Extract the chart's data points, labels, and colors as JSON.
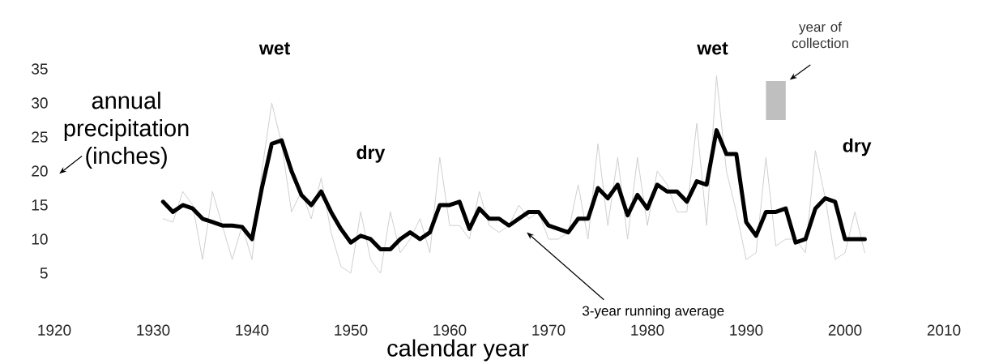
{
  "chart_data": {
    "type": "line",
    "xlabel": "calendar year",
    "ylabel": "annual precipitation (inches)",
    "x": [
      1931,
      1932,
      1933,
      1934,
      1935,
      1936,
      1937,
      1938,
      1939,
      1940,
      1941,
      1942,
      1943,
      1944,
      1945,
      1946,
      1947,
      1948,
      1949,
      1950,
      1951,
      1952,
      1953,
      1954,
      1955,
      1956,
      1957,
      1958,
      1959,
      1960,
      1961,
      1962,
      1963,
      1964,
      1965,
      1966,
      1967,
      1968,
      1969,
      1970,
      1971,
      1972,
      1973,
      1974,
      1975,
      1976,
      1977,
      1978,
      1979,
      1980,
      1981,
      1982,
      1983,
      1984,
      1985,
      1986,
      1987,
      1988,
      1989,
      1990,
      1991,
      1992,
      1993,
      1994,
      1995,
      1996,
      1997,
      1998,
      1999,
      2000,
      2001,
      2002
    ],
    "series": [
      {
        "color": "#cfcfcf",
        "values": [
          13,
          12.5,
          17,
          15,
          7,
          17,
          12,
          7,
          12,
          7,
          20,
          30,
          24,
          14,
          17,
          13,
          19,
          11,
          6,
          5,
          14,
          7,
          5,
          14,
          8,
          10,
          13,
          8,
          22,
          12,
          12,
          10,
          17,
          12,
          11,
          12,
          15,
          13,
          14,
          10,
          10,
          11,
          18,
          10,
          24,
          12,
          22,
          10,
          22,
          12,
          20,
          18,
          14,
          14,
          27,
          12,
          34,
          20,
          14,
          7,
          8,
          22,
          9,
          10,
          10,
          8,
          23,
          16,
          7,
          8,
          14,
          8
        ]
      },
      {
        "color": "#000000",
        "values": [
          15.5,
          14,
          15,
          14.5,
          13,
          12.5,
          12,
          12,
          11.8,
          10,
          17.5,
          24,
          24.5,
          20,
          16.5,
          15,
          17,
          14,
          11.5,
          9.5,
          10.5,
          10,
          8.5,
          8.5,
          10,
          11,
          10,
          11,
          15,
          15,
          15.5,
          11.5,
          14.5,
          13,
          13,
          12,
          13,
          14,
          14,
          12,
          11.5,
          11,
          13,
          13,
          17.5,
          16,
          18,
          13.5,
          16.5,
          14.5,
          18,
          17,
          17,
          15.5,
          18.5,
          18,
          26,
          22.5,
          22.5,
          12.5,
          10.5,
          14,
          14,
          14.5,
          9.5,
          10,
          14.5,
          16,
          15.5,
          10,
          10,
          10
        ]
      }
    ],
    "xlim": [
      1920,
      2010
    ],
    "xticks": [
      1920,
      1930,
      1940,
      1950,
      1960,
      1970,
      1980,
      1990,
      2000,
      2010
    ],
    "ylim": [
      5,
      35
    ],
    "yticks": [
      5,
      10,
      15,
      20,
      25,
      30,
      35
    ],
    "grid": false,
    "marker": "none",
    "line_style": "solid",
    "bands": [
      {
        "axis": "x",
        "from": 1992,
        "to": 1994,
        "label": "year of collection",
        "color": "#bfbfbf"
      }
    ],
    "annotations": [
      "wet",
      "dry",
      "wet",
      "dry",
      "3-year running average"
    ]
  }
}
